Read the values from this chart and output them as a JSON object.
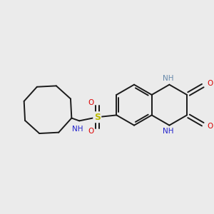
{
  "background_color": "#ebebeb",
  "bond_color": "#1a1a1a",
  "atom_colors": {
    "N": "#2222cc",
    "O": "#dd0000",
    "S": "#bbbb00",
    "NH_gray": "#6688aa"
  },
  "figsize": [
    3.0,
    3.0
  ],
  "dpi": 100,
  "BL": 1.0
}
